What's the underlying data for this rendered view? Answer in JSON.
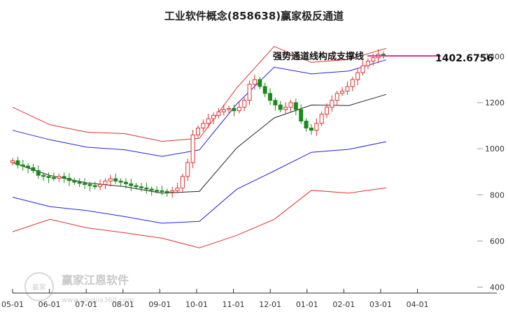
{
  "chart_data": {
    "type": "candlestick",
    "title": "工业软件概念(858638)赢家极反通道",
    "xlabel": "",
    "ylabel": "",
    "ylim": [
      380,
      1500
    ],
    "y_ticks": [
      400,
      600,
      800,
      1000,
      1200,
      1400
    ],
    "x_ticks": [
      "05-01",
      "06-01",
      "07-01",
      "08-01",
      "09-01",
      "10-01",
      "11-01",
      "12-01",
      "01-01",
      "02-01",
      "03-01",
      "04-01"
    ],
    "annotation": {
      "text": "强势通道线构成支撑线",
      "value": "1402.6756",
      "y": 1402.6756
    },
    "watermark": {
      "brand": "赢家江恩软件",
      "url": "www.yingjia360.com",
      "seal": "赢家"
    },
    "colors": {
      "up": "#e03030",
      "down": "#1a8a1a",
      "outer_band": "#e03030",
      "inner_band": "#2222dd",
      "mid_line": "#222222",
      "annotation_line": "#e0308a"
    },
    "bands": {
      "months": [
        "05-01",
        "06-01",
        "07-01",
        "08-01",
        "09-01",
        "10-01",
        "11-01",
        "12-01",
        "01-01",
        "02-01",
        "03-01"
      ],
      "outer_upper": [
        1180,
        1110,
        1070,
        1060,
        1035,
        1050,
        1260,
        1440,
        1380,
        1390,
        1430
      ],
      "inner_upper": [
        1080,
        1045,
        1005,
        990,
        970,
        1000,
        1190,
        1350,
        1330,
        1340,
        1380
      ],
      "middle": [
        940,
        890,
        850,
        830,
        810,
        820,
        1000,
        1130,
        1195,
        1190,
        1230
      ],
      "inner_lower": [
        790,
        755,
        730,
        700,
        680,
        690,
        820,
        900,
        990,
        1000,
        1025
      ],
      "outer_lower": [
        640,
        700,
        655,
        630,
        615,
        575,
        620,
        690,
        825,
        810,
        825
      ]
    },
    "candles": {
      "open": [
        940,
        948,
        930,
        925,
        918,
        905,
        885,
        880,
        875,
        872,
        880,
        872,
        862,
        855,
        850,
        845,
        840,
        836,
        845,
        860,
        870,
        860,
        855,
        848,
        840,
        835,
        830,
        825,
        820,
        818,
        815,
        812,
        818,
        830,
        880,
        940,
        1060,
        1090,
        1110,
        1130,
        1145,
        1160,
        1170,
        1175,
        1165,
        1180,
        1210,
        1280,
        1300,
        1270,
        1240,
        1210,
        1190,
        1170,
        1180,
        1200,
        1170,
        1120,
        1090,
        1080,
        1110,
        1150,
        1180,
        1210,
        1240,
        1250,
        1270,
        1300,
        1330,
        1360,
        1380,
        1395,
        1410
      ],
      "close": [
        948,
        930,
        925,
        918,
        905,
        885,
        880,
        875,
        872,
        880,
        872,
        862,
        855,
        850,
        845,
        840,
        836,
        845,
        860,
        870,
        860,
        855,
        848,
        840,
        835,
        830,
        825,
        820,
        818,
        815,
        812,
        818,
        830,
        880,
        940,
        1060,
        1090,
        1110,
        1130,
        1145,
        1160,
        1170,
        1175,
        1165,
        1180,
        1210,
        1280,
        1300,
        1270,
        1240,
        1210,
        1190,
        1170,
        1180,
        1200,
        1170,
        1120,
        1090,
        1080,
        1110,
        1150,
        1180,
        1210,
        1240,
        1250,
        1270,
        1300,
        1330,
        1360,
        1380,
        1395,
        1410,
        1402
      ]
    }
  }
}
